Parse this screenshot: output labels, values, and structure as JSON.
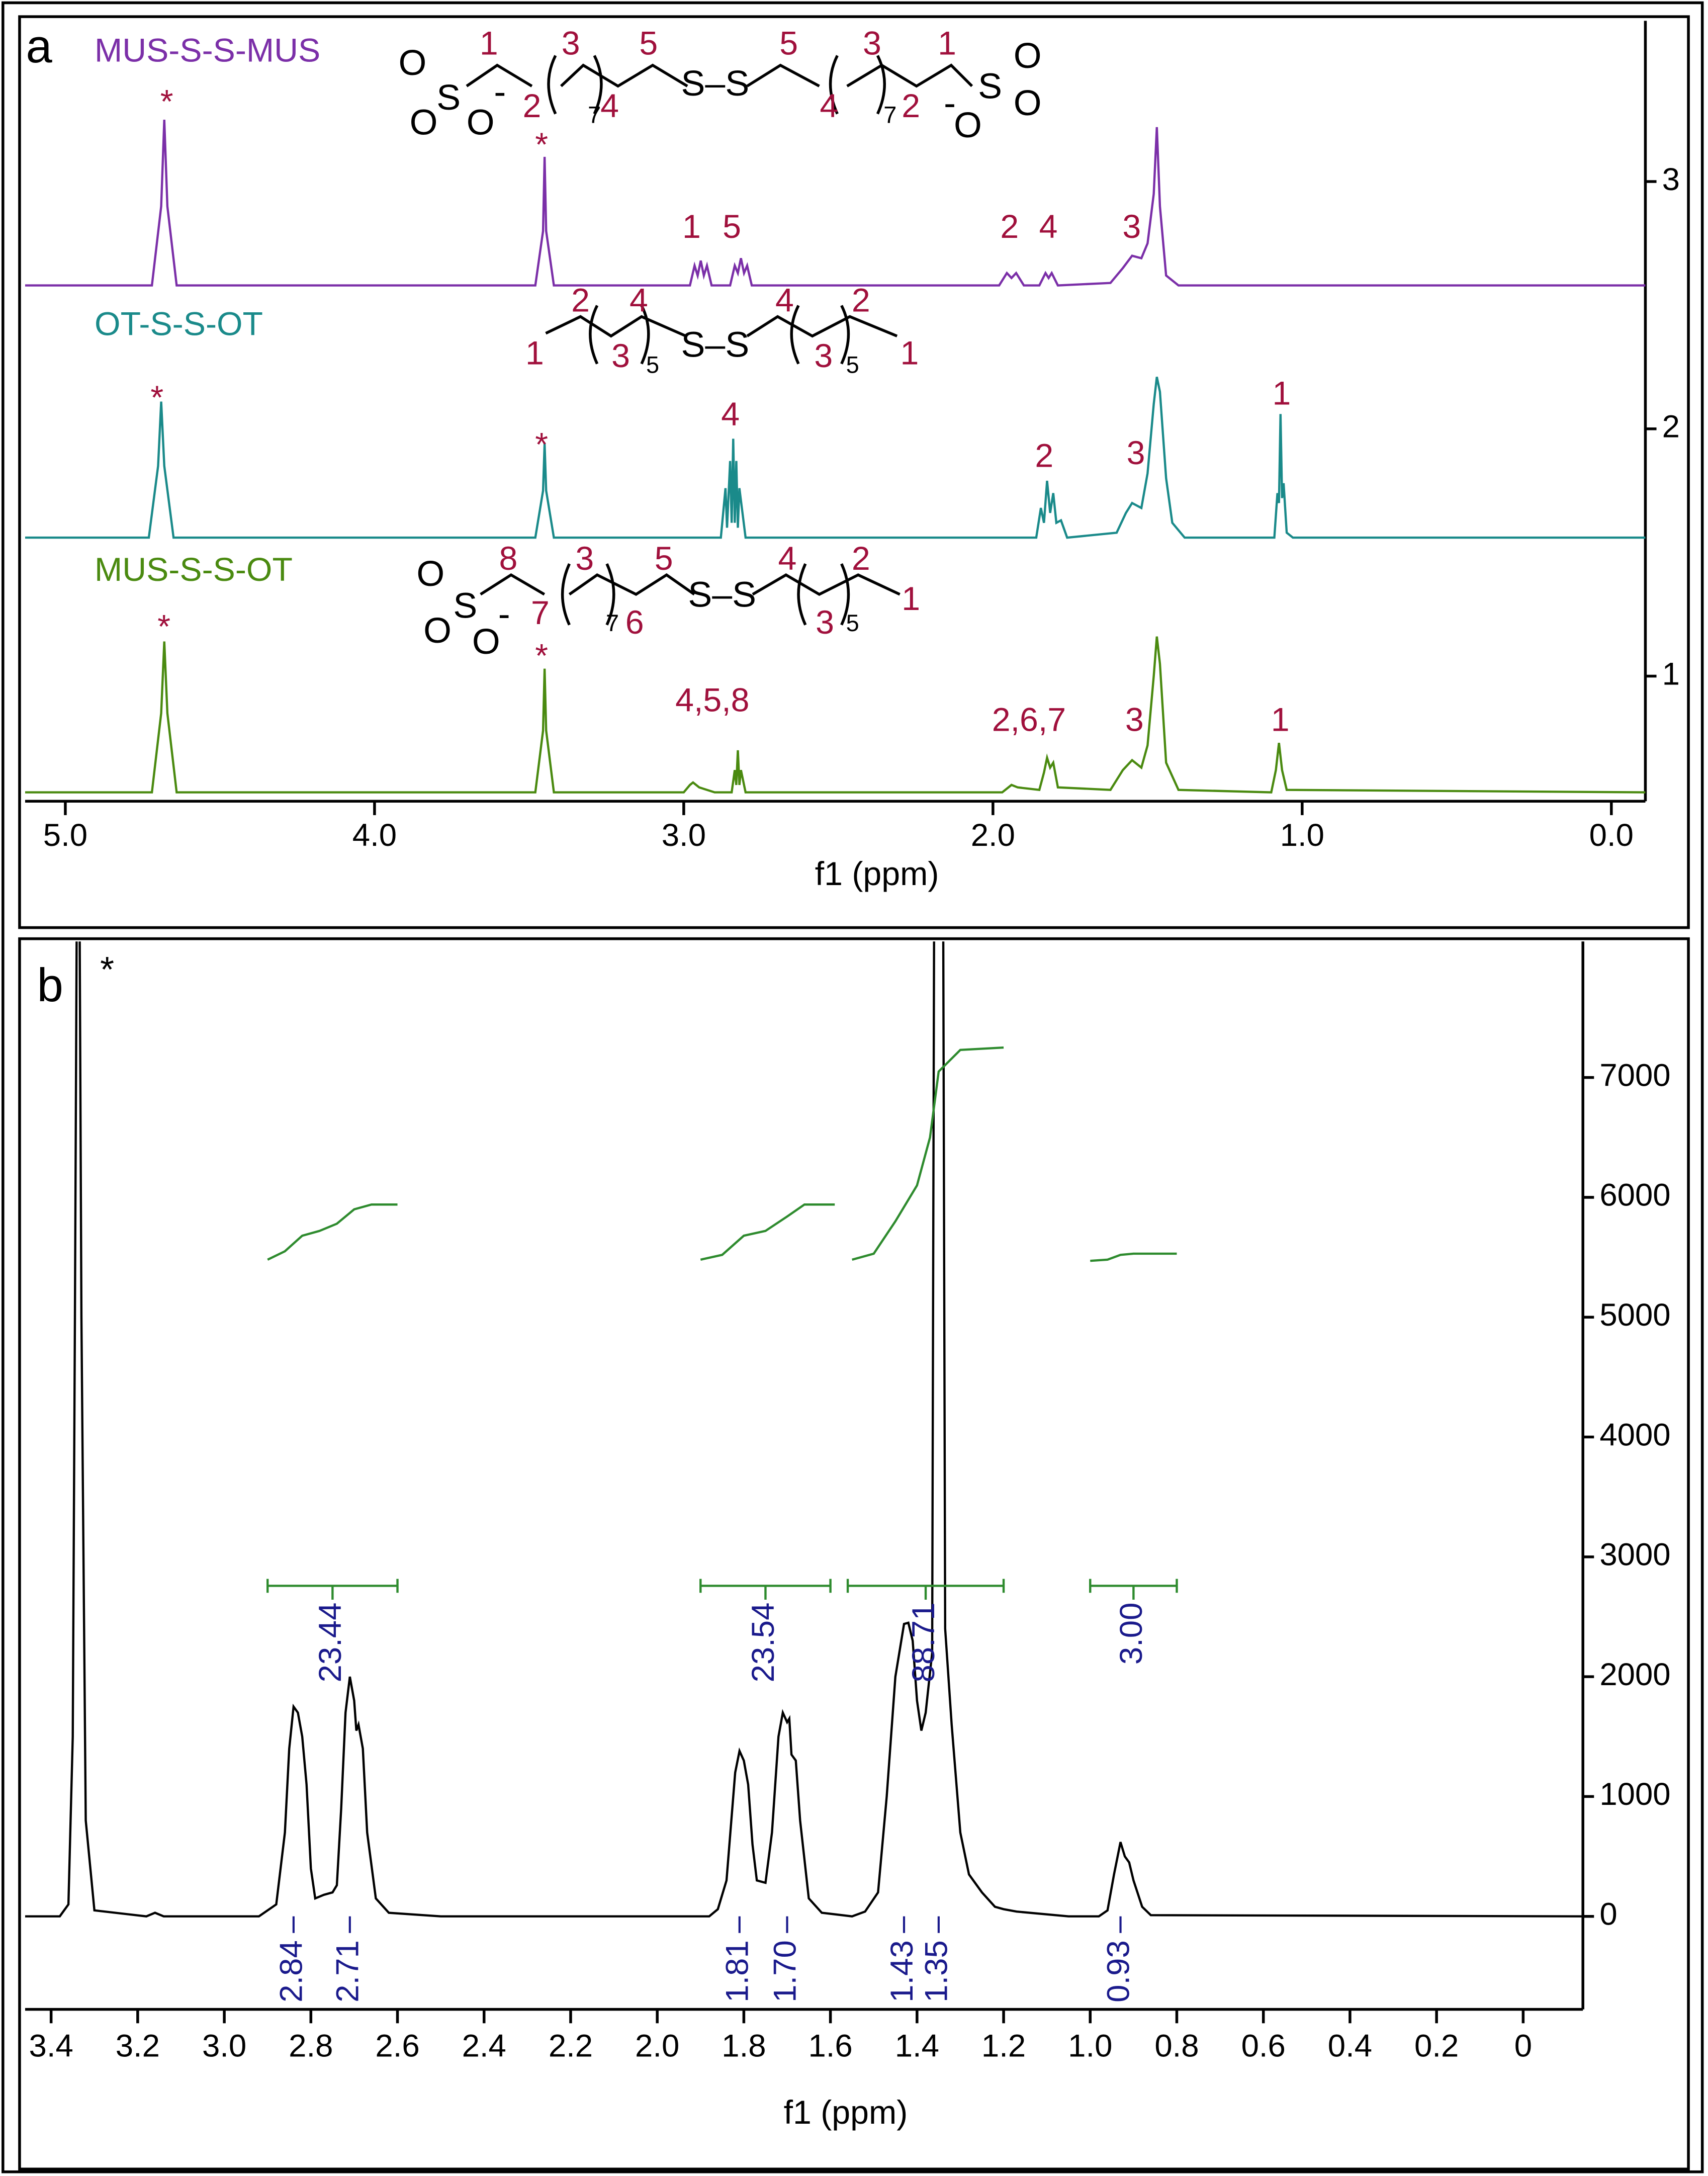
{
  "chart_data": [
    {
      "type": "line",
      "panel": "a",
      "xlabel": "f1 (ppm)",
      "xlim": [
        5.13,
        -0.11
      ],
      "ylim": [
        0.494,
        3.65
      ],
      "xticks": [
        {
          "value": 5,
          "label": "5.0"
        },
        {
          "value": 4,
          "label": "4.0"
        },
        {
          "value": 3,
          "label": "3.0"
        },
        {
          "value": 2,
          "label": "2.0"
        },
        {
          "value": 1,
          "label": "1.0"
        },
        {
          "value": 0,
          "label": "0.0"
        }
      ],
      "yticks": [
        1,
        2,
        3
      ],
      "series": [
        {
          "name": "MUS-S-S-MUS",
          "color": "#7b2fa8",
          "x": [
            5.13,
            4.72,
            4.69,
            4.68,
            4.67,
            4.64,
            3.48,
            3.455,
            3.45,
            3.445,
            3.42,
            2.98,
            2.965,
            2.955,
            2.945,
            2.935,
            2.925,
            2.91,
            2.85,
            2.835,
            2.825,
            2.815,
            2.805,
            2.795,
            2.78,
            1.98,
            1.955,
            1.94,
            1.925,
            1.9,
            1.85,
            1.83,
            1.82,
            1.81,
            1.79,
            1.62,
            1.58,
            1.55,
            1.52,
            1.5,
            1.48,
            1.47,
            1.46,
            1.44,
            1.4,
            -0.11
          ],
          "values": [
            2.58,
            2.58,
            2.9,
            3.25,
            2.9,
            2.58,
            2.58,
            2.8,
            3.1,
            2.8,
            2.58,
            2.58,
            2.66,
            2.62,
            2.68,
            2.62,
            2.66,
            2.58,
            2.58,
            2.66,
            2.63,
            2.69,
            2.63,
            2.66,
            2.58,
            2.58,
            2.63,
            2.61,
            2.63,
            2.58,
            2.58,
            2.63,
            2.61,
            2.63,
            2.58,
            2.59,
            2.65,
            2.7,
            2.69,
            2.75,
            2.95,
            3.22,
            2.9,
            2.62,
            2.58,
            2.58
          ],
          "structure": [
            "O",
            "S",
            "O",
            "O",
            "-",
            "1",
            "2",
            "3",
            "7",
            "4",
            "5",
            "S–S",
            "5",
            "4",
            "3",
            "7",
            "2",
            "1",
            "-",
            "O",
            "S",
            "O",
            "O"
          ],
          "annotations": [
            "*",
            "*",
            "1",
            "5",
            "2",
            "4",
            "3"
          ]
        },
        {
          "name": "OT-S-S-OT",
          "color": "#1a8a8a",
          "x": [
            5.13,
            4.73,
            4.7,
            4.69,
            4.68,
            4.65,
            3.48,
            3.455,
            3.45,
            3.445,
            3.42,
            2.88,
            2.865,
            2.86,
            2.85,
            2.845,
            2.84,
            2.835,
            2.83,
            2.825,
            2.82,
            2.8,
            1.86,
            1.845,
            1.835,
            1.825,
            1.815,
            1.805,
            1.795,
            1.78,
            1.76,
            1.6,
            1.57,
            1.55,
            1.52,
            1.5,
            1.48,
            1.47,
            1.46,
            1.44,
            1.42,
            1.38,
            1.09,
            1.08,
            1.075,
            1.07,
            1.065,
            1.06,
            1.05,
            1.03,
            -0.11
          ],
          "values": [
            1.56,
            1.56,
            1.85,
            2.11,
            1.85,
            1.56,
            1.56,
            1.75,
            1.94,
            1.75,
            1.56,
            1.56,
            1.76,
            1.6,
            1.87,
            1.62,
            1.96,
            1.62,
            1.87,
            1.6,
            1.76,
            1.56,
            1.56,
            1.68,
            1.62,
            1.79,
            1.66,
            1.74,
            1.62,
            1.63,
            1.56,
            1.58,
            1.66,
            1.7,
            1.68,
            1.82,
            2.1,
            2.21,
            2.15,
            1.8,
            1.62,
            1.56,
            1.56,
            1.74,
            1.7,
            2.06,
            1.72,
            1.78,
            1.58,
            1.56,
            1.56
          ],
          "structure": [
            "2",
            "4",
            "1",
            "3",
            "5",
            "S–S",
            "4",
            "2",
            "3",
            "5",
            "1"
          ],
          "annotations": [
            "*",
            "*",
            "4",
            "2",
            "3",
            "1"
          ]
        },
        {
          "name": "MUS-S-S-OT",
          "color": "#4a8a10",
          "x": [
            5.13,
            4.72,
            4.69,
            4.68,
            4.67,
            4.64,
            3.48,
            3.455,
            3.45,
            3.445,
            3.42,
            3.0,
            2.98,
            2.97,
            2.95,
            2.9,
            2.845,
            2.835,
            2.83,
            2.825,
            2.82,
            2.815,
            2.8,
            1.97,
            1.94,
            1.92,
            1.85,
            1.835,
            1.825,
            1.815,
            1.805,
            1.79,
            1.62,
            1.58,
            1.55,
            1.52,
            1.5,
            1.48,
            1.47,
            1.46,
            1.44,
            1.4,
            1.1,
            1.085,
            1.075,
            1.065,
            1.05,
            -0.11
          ],
          "values": [
            0.53,
            0.53,
            0.85,
            1.14,
            0.85,
            0.53,
            0.53,
            0.78,
            1.03,
            0.78,
            0.53,
            0.53,
            0.56,
            0.57,
            0.55,
            0.53,
            0.53,
            0.62,
            0.56,
            0.7,
            0.56,
            0.62,
            0.53,
            0.53,
            0.56,
            0.55,
            0.54,
            0.61,
            0.67,
            0.63,
            0.65,
            0.55,
            0.54,
            0.62,
            0.66,
            0.63,
            0.72,
            1.0,
            1.16,
            1.05,
            0.65,
            0.54,
            0.53,
            0.62,
            0.73,
            0.62,
            0.54,
            0.53
          ],
          "structure": [
            "O",
            "S",
            "O",
            "O",
            "-",
            "8",
            "7",
            "3",
            "7",
            "6",
            "5",
            "S–S",
            "4",
            "2",
            "3",
            "5",
            "1"
          ],
          "annotations": [
            "*",
            "*",
            "4,5,8",
            "2,6,7",
            "3",
            "1"
          ]
        }
      ]
    },
    {
      "type": "line",
      "panel": "b",
      "xlabel": "f1 (ppm)",
      "xlim": [
        3.46,
        -0.138
      ],
      "ylim": [
        -776,
        8135
      ],
      "xticks": [
        3.4,
        3.2,
        {
          "value": 3,
          "label": "3.0"
        },
        2.8,
        2.6,
        2.4,
        2.2,
        {
          "value": 2,
          "label": "2.0"
        },
        1.8,
        1.6,
        1.4,
        1.2,
        {
          "value": 1,
          "label": "1.0"
        },
        0.8,
        0.6,
        0.4,
        0.2,
        0
      ],
      "yticks": [
        0,
        1000,
        2000,
        3000,
        4000,
        5000,
        6000,
        7000
      ],
      "series": [
        {
          "color": "#000000",
          "x": [
            3.46,
            3.38,
            3.36,
            3.35,
            3.345,
            3.34,
            3.335,
            3.33,
            3.32,
            3.3,
            3.18,
            3.16,
            3.14,
            2.92,
            2.88,
            2.86,
            2.85,
            2.84,
            2.83,
            2.82,
            2.81,
            2.8,
            2.79,
            2.77,
            2.75,
            2.74,
            2.73,
            2.72,
            2.71,
            2.7,
            2.695,
            2.69,
            2.68,
            2.67,
            2.65,
            2.62,
            2.5,
            1.88,
            1.86,
            1.84,
            1.82,
            1.81,
            1.8,
            1.79,
            1.78,
            1.77,
            1.75,
            1.735,
            1.72,
            1.71,
            1.7,
            1.695,
            1.69,
            1.68,
            1.67,
            1.65,
            1.62,
            1.55,
            1.52,
            1.49,
            1.47,
            1.45,
            1.43,
            1.42,
            1.41,
            1.4,
            1.39,
            1.38,
            1.365,
            1.36,
            1.34,
            1.335,
            1.32,
            1.3,
            1.28,
            1.25,
            1.22,
            1.2,
            1.17,
            1.05,
            0.98,
            0.96,
            0.945,
            0.93,
            0.92,
            0.91,
            0.9,
            0.88,
            0.86,
            -0.138
          ],
          "values": [
            0,
            0,
            100,
            1500,
            5000,
            9000,
            9000,
            5000,
            800,
            50,
            0,
            30,
            0,
            0,
            100,
            700,
            1400,
            1750,
            1700,
            1500,
            1100,
            400,
            150,
            180,
            200,
            260,
            900,
            1700,
            2000,
            1800,
            1550,
            1600,
            1400,
            700,
            150,
            30,
            0,
            0,
            60,
            300,
            1200,
            1380,
            1300,
            1100,
            600,
            300,
            280,
            700,
            1500,
            1700,
            1620,
            1650,
            1350,
            1300,
            800,
            150,
            30,
            0,
            40,
            200,
            1000,
            2000,
            2440,
            2450,
            2300,
            1800,
            1550,
            1700,
            2200,
            9000,
            9000,
            2400,
            1600,
            700,
            350,
            200,
            80,
            60,
            40,
            0,
            0,
            50,
            350,
            620,
            500,
            450,
            300,
            80,
            10,
            0
          ]
        }
      ],
      "annotations": [
        "*"
      ],
      "integral_color": "#2e8b2e",
      "integral_curves": [
        {
          "x": [
            2.9,
            2.86,
            2.82,
            2.78,
            2.74,
            2.7,
            2.66,
            2.6
          ],
          "values": [
            5480,
            5550,
            5680,
            5720,
            5780,
            5900,
            5940,
            5940
          ]
        },
        {
          "x": [
            1.9,
            1.85,
            1.8,
            1.75,
            1.7,
            1.66,
            1.59
          ],
          "values": [
            5480,
            5520,
            5680,
            5720,
            5840,
            5940,
            5940
          ]
        },
        {
          "x": [
            1.55,
            1.5,
            1.45,
            1.4,
            1.37,
            1.35,
            1.3,
            1.2
          ],
          "values": [
            5480,
            5530,
            5800,
            6100,
            6500,
            7050,
            7230,
            7250
          ]
        },
        {
          "x": [
            1.0,
            0.96,
            0.93,
            0.9,
            0.8
          ],
          "values": [
            5470,
            5480,
            5520,
            5530,
            5530
          ]
        }
      ],
      "integrals": {
        "ranges": [
          [
            2.9,
            2.6
          ],
          [
            1.9,
            1.6
          ],
          [
            1.56,
            1.2
          ],
          [
            1.0,
            0.8
          ]
        ],
        "values": [
          23.44,
          23.54,
          88.71,
          3
        ],
        "value_labels": [
          "23.44",
          "23.54",
          "88.71",
          "3.00"
        ]
      },
      "peaks": {
        "values": [
          2.84,
          2.71,
          1.81,
          1.7,
          1.43,
          1.35,
          0.93
        ],
        "value_labels": [
          "2.84",
          "2.71",
          "1.81",
          "1.70",
          "1.43",
          "1.35",
          "0.93"
        ]
      }
    }
  ]
}
